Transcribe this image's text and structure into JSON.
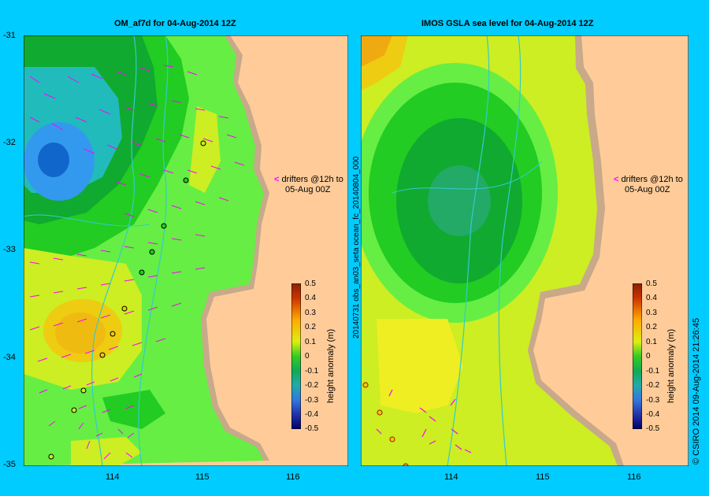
{
  "left_panel": {
    "title": "OM_af7d for 04-Aug-2014 12Z",
    "lat_ticks": [
      "-31",
      "-32",
      "-33",
      "-34",
      "-35"
    ],
    "lon_ticks": [
      "114",
      "115",
      "116"
    ],
    "drifter_note_line1": "drifters @12h to",
    "drifter_note_line2": "05-Aug 00Z"
  },
  "right_panel": {
    "title": "IMOS GSLA sea level  for 04-Aug-2014 12Z",
    "lon_ticks": [
      "114",
      "115",
      "116"
    ],
    "drifter_note_line1": "drifters @12h to",
    "drifter_note_line2": "05-Aug 00Z",
    "side_label": "20140731 obs_an03_seta   ocean_fc_20140804_000"
  },
  "colorbar": {
    "label": "height anomaly (m)",
    "ticks": [
      "0.5",
      "0.4",
      "0.3",
      "0.2",
      "0.1",
      "0",
      "-0.1",
      "-0.2",
      "-0.3",
      "-0.4",
      "-0.5"
    ]
  },
  "footer_right": "© CSIRO 2014   09-Aug-2014 21:26:45",
  "colors": {
    "background": "#00ccff",
    "land": "#ffcc99",
    "coast": "#c8a98a",
    "drifter": "#ff00ff"
  }
}
